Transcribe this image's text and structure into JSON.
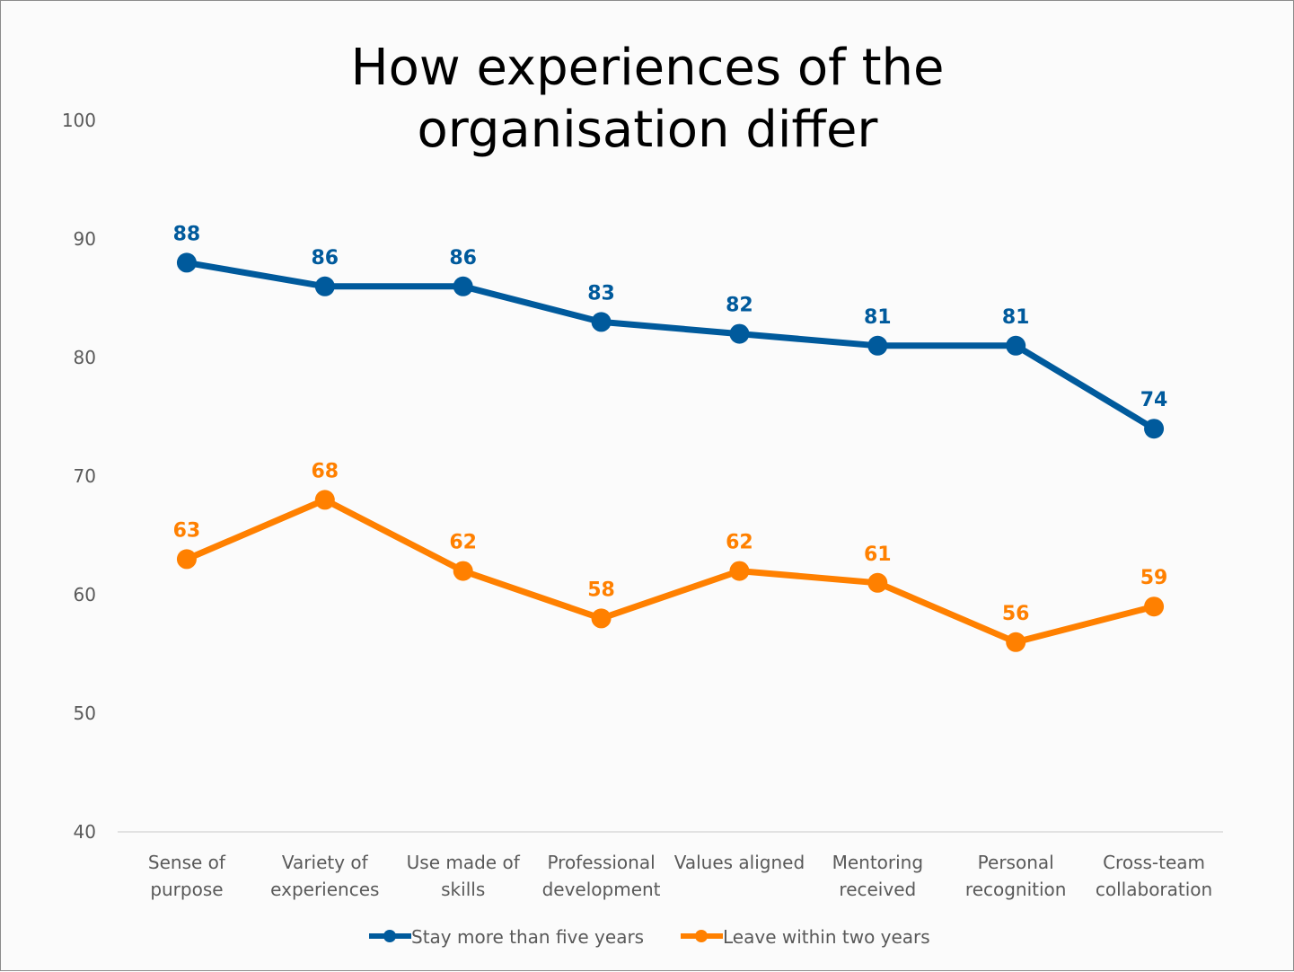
{
  "chart_data": {
    "type": "line",
    "title": "How experiences of the organisation differ",
    "title_lines": [
      "How experiences of the",
      "organisation differ"
    ],
    "xlabel": "",
    "ylabel": "",
    "ylim": [
      40,
      100
    ],
    "yticks": [
      40,
      50,
      60,
      70,
      80,
      90,
      100
    ],
    "grid": false,
    "legend_position": "bottom",
    "categories": [
      [
        "Sense of",
        "purpose"
      ],
      [
        "Variety of",
        "experiences"
      ],
      [
        "Use made of",
        "skills"
      ],
      [
        "Professional",
        "development"
      ],
      [
        "Values aligned"
      ],
      [
        "Mentoring",
        "received"
      ],
      [
        "Personal",
        "recognition"
      ],
      [
        "Cross-team",
        "collaboration"
      ]
    ],
    "series": [
      {
        "name": "Stay more than five years",
        "color": "#005a9c",
        "values": [
          88,
          86,
          86,
          83,
          82,
          81,
          81,
          74
        ]
      },
      {
        "name": "Leave within two years",
        "color": "#ff8000",
        "values": [
          63,
          68,
          62,
          58,
          62,
          61,
          56,
          59
        ]
      }
    ]
  }
}
